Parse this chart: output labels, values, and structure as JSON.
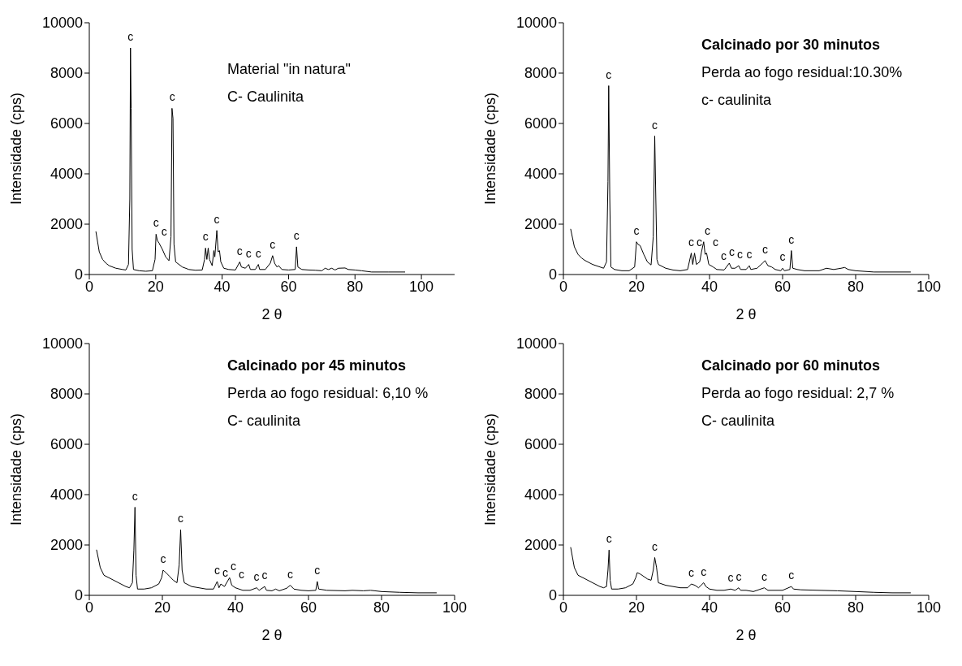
{
  "chart_data": [
    {
      "type": "line",
      "xlabel": "2 θ",
      "ylabel": "Intensidade (cps)",
      "xlim": [
        0,
        110
      ],
      "xticks": [
        0,
        20,
        40,
        60,
        80,
        100
      ],
      "ylim": [
        0,
        10000
      ],
      "yticks": [
        0,
        2000,
        4000,
        6000,
        8000,
        10000
      ],
      "x": [
        2,
        3,
        4,
        5,
        6,
        8,
        10,
        11,
        11.8,
        12.2,
        12.4,
        12.6,
        12.9,
        13.3,
        15,
        17,
        19,
        19.8,
        20.1,
        20.5,
        21,
        22,
        23,
        24,
        24.6,
        24.9,
        25.2,
        25.5,
        26,
        28,
        30,
        32,
        34,
        34.7,
        35,
        35.4,
        35.8,
        36.2,
        37,
        37.5,
        37.8,
        38.4,
        38.8,
        39.2,
        39.6,
        40.5,
        42,
        44,
        45.3,
        45.8,
        47,
        48,
        48.5,
        50,
        50.9,
        51.3,
        53,
        54.5,
        55.2,
        55.8,
        56.5,
        57,
        58,
        60,
        62,
        62.4,
        62.8,
        64,
        66,
        68,
        70,
        71,
        72,
        73,
        74,
        75,
        77,
        78,
        80,
        82,
        85,
        90,
        95
      ],
      "series": [
        {
          "color": "#000000",
          "values": [
            1700,
            900,
            600,
            450,
            350,
            250,
            200,
            180,
            400,
            3000,
            9000,
            6600,
            1000,
            200,
            150,
            130,
            150,
            600,
            1600,
            1350,
            1250,
            1000,
            700,
            550,
            1500,
            6600,
            6200,
            1200,
            500,
            300,
            200,
            170,
            180,
            600,
            1050,
            600,
            1050,
            600,
            350,
            950,
            700,
            1750,
            900,
            950,
            500,
            250,
            200,
            180,
            500,
            300,
            250,
            400,
            200,
            200,
            400,
            200,
            200,
            450,
            750,
            450,
            300,
            350,
            200,
            180,
            200,
            1100,
            300,
            200,
            180,
            170,
            150,
            250,
            200,
            250,
            180,
            250,
            260,
            200,
            180,
            150,
            100,
            100,
            100
          ]
        }
      ],
      "annotations": [
        "Material \"in natura\"",
        "C- Caulinita",
        {
          "text": "c",
          "x": 12.4,
          "y": 9000
        },
        {
          "text": "c",
          "x": 20.1,
          "y": 1600
        },
        {
          "text": "c",
          "x": 21,
          "y": 1250
        },
        {
          "text": "c",
          "x": 24.9,
          "y": 6600
        },
        {
          "text": "c",
          "x": 35,
          "y": 1050
        },
        {
          "text": "c",
          "x": 38.4,
          "y": 1750
        },
        {
          "text": "c",
          "x": 45.3,
          "y": 500
        },
        {
          "text": "c",
          "x": 48,
          "y": 400
        },
        {
          "text": "c",
          "x": 50.9,
          "y": 400
        },
        {
          "text": "c",
          "x": 55.2,
          "y": 750
        },
        {
          "text": "c",
          "x": 62.4,
          "y": 1100
        }
      ]
    },
    {
      "type": "line",
      "title": "Calcinado por 30 minutos",
      "xlabel": "2 θ",
      "ylabel": "Intensidade (cps)",
      "xlim": [
        0,
        100
      ],
      "xticks": [
        0,
        20,
        40,
        60,
        80,
        100
      ],
      "ylim": [
        0,
        10000
      ],
      "yticks": [
        0,
        2000,
        4000,
        6000,
        8000,
        10000
      ],
      "x": [
        2,
        3,
        4,
        5,
        6,
        8,
        10,
        11,
        11.8,
        12.2,
        12.4,
        12.7,
        13,
        14,
        16,
        18,
        19.5,
        20,
        20.4,
        21,
        22,
        23,
        24,
        24.6,
        25,
        25.3,
        25.6,
        26,
        28,
        30,
        32,
        34,
        35,
        35.4,
        35.9,
        36.4,
        37.3,
        37.8,
        38.4,
        38.8,
        39.2,
        39.8,
        41,
        42,
        44,
        45.4,
        46,
        47,
        48,
        48.5,
        50,
        50.9,
        51.3,
        53,
        54.5,
        55.2,
        56,
        57,
        58,
        59.5,
        60,
        60.5,
        62,
        62.4,
        62.8,
        64,
        66,
        70,
        72,
        74,
        76,
        77,
        78,
        80,
        85,
        90,
        95
      ],
      "series": [
        {
          "color": "#000000",
          "values": [
            1800,
            1100,
            800,
            650,
            550,
            400,
            300,
            250,
            500,
            3700,
            7500,
            3000,
            300,
            200,
            150,
            150,
            300,
            1300,
            1200,
            1150,
            800,
            500,
            380,
            1500,
            5500,
            3000,
            600,
            400,
            250,
            180,
            150,
            200,
            850,
            400,
            850,
            400,
            500,
            900,
            1300,
            800,
            850,
            400,
            300,
            200,
            180,
            450,
            250,
            250,
            350,
            200,
            200,
            350,
            200,
            250,
            450,
            550,
            350,
            300,
            200,
            150,
            250,
            150,
            200,
            950,
            250,
            200,
            150,
            150,
            250,
            200,
            250,
            280,
            200,
            150,
            100,
            100,
            100
          ]
        }
      ],
      "annotations": [
        "Perda ao fogo residual:10.30%",
        "c- caulinita",
        {
          "text": "c",
          "x": 12.4,
          "y": 7500
        },
        {
          "text": "c",
          "x": 20,
          "y": 1300
        },
        {
          "text": "c",
          "x": 25,
          "y": 5500
        },
        {
          "text": "c",
          "x": 35,
          "y": 850
        },
        {
          "text": "c",
          "x": 35.9,
          "y": 850
        },
        {
          "text": "c",
          "x": 38.4,
          "y": 1300
        },
        {
          "text": "c",
          "x": 39.2,
          "y": 850
        },
        {
          "text": "c",
          "x": 41,
          "y": 300
        },
        {
          "text": "c",
          "x": 45.4,
          "y": 450
        },
        {
          "text": "c",
          "x": 48,
          "y": 350
        },
        {
          "text": "c",
          "x": 50.9,
          "y": 350
        },
        {
          "text": "c",
          "x": 55.2,
          "y": 550
        },
        {
          "text": "c",
          "x": 60,
          "y": 250
        },
        {
          "text": "c",
          "x": 62.4,
          "y": 950
        }
      ]
    },
    {
      "type": "line",
      "title": "Calcinado por 45 minutos",
      "xlabel": "2 θ",
      "ylabel": "Intensidade (cps)",
      "xlim": [
        0,
        100
      ],
      "xticks": [
        0,
        20,
        40,
        60,
        80,
        100
      ],
      "ylim": [
        0,
        10000
      ],
      "yticks": [
        0,
        2000,
        4000,
        6000,
        8000,
        10000
      ],
      "x": [
        2,
        3,
        4,
        6,
        8,
        10,
        11,
        11.8,
        12.2,
        12.5,
        12.8,
        13.2,
        15,
        17,
        19,
        19.8,
        20.2,
        20.6,
        21,
        22,
        23,
        24,
        24.6,
        25,
        25.4,
        26,
        28,
        30,
        32,
        34,
        35,
        35.5,
        36,
        37,
        37.8,
        38.4,
        39,
        40,
        42,
        44,
        45.8,
        46.5,
        48,
        48.5,
        50,
        51,
        52,
        54,
        55,
        56,
        58,
        60,
        62,
        62.4,
        62.8,
        65,
        70,
        72,
        75,
        77,
        80,
        85,
        90,
        95
      ],
      "series": [
        {
          "color": "#000000",
          "values": [
            1800,
            1100,
            800,
            650,
            500,
            350,
            300,
            500,
            1800,
            3500,
            800,
            250,
            250,
            300,
            450,
            700,
            1000,
            950,
            900,
            750,
            600,
            500,
            1200,
            2600,
            1000,
            500,
            350,
            300,
            250,
            250,
            550,
            300,
            450,
            350,
            550,
            700,
            400,
            300,
            200,
            200,
            300,
            200,
            350,
            200,
            180,
            250,
            180,
            280,
            400,
            250,
            200,
            180,
            200,
            550,
            250,
            200,
            180,
            200,
            180,
            200,
            150,
            120,
            100,
            100
          ]
        }
      ],
      "annotations": [
        "Perda ao fogo residual: 6,10 %",
        "C- caulinita",
        {
          "text": "c",
          "x": 12.5,
          "y": 3500
        },
        {
          "text": "c",
          "x": 20.2,
          "y": 1000
        },
        {
          "text": "c",
          "x": 25,
          "y": 2600
        },
        {
          "text": "c",
          "x": 35,
          "y": 550
        },
        {
          "text": "c",
          "x": 36,
          "y": 450
        },
        {
          "text": "c",
          "x": 38.4,
          "y": 700
        },
        {
          "text": "c",
          "x": 39,
          "y": 400
        },
        {
          "text": "c",
          "x": 45.8,
          "y": 300
        },
        {
          "text": "c",
          "x": 48,
          "y": 350
        },
        {
          "text": "c",
          "x": 55,
          "y": 400
        },
        {
          "text": "c",
          "x": 62.4,
          "y": 550
        }
      ]
    },
    {
      "type": "line",
      "title": "Calcinado por 60 minutos",
      "xlabel": "2 θ",
      "ylabel": "Intensidade (cps)",
      "xlim": [
        0,
        100
      ],
      "xticks": [
        0,
        20,
        40,
        60,
        80,
        100
      ],
      "ylim": [
        0,
        10000
      ],
      "yticks": [
        0,
        2000,
        4000,
        6000,
        8000,
        10000
      ],
      "x": [
        2,
        3,
        4,
        6,
        8,
        10,
        11,
        11.8,
        12.2,
        12.5,
        12.8,
        13.2,
        15,
        17,
        19,
        19.8,
        20.2,
        21,
        22,
        23,
        24,
        24.6,
        25,
        25.5,
        26,
        28,
        30,
        32,
        34,
        35,
        36,
        37,
        38.4,
        39,
        40,
        42,
        44,
        45.8,
        47,
        48,
        48.5,
        50,
        52,
        54,
        55,
        56,
        58,
        60,
        62.4,
        63,
        65,
        70,
        75,
        80,
        85,
        90,
        95
      ],
      "series": [
        {
          "color": "#000000",
          "values": [
            1900,
            1100,
            800,
            650,
            500,
            350,
            300,
            350,
            1000,
            1800,
            600,
            250,
            250,
            300,
            450,
            700,
            900,
            850,
            750,
            650,
            600,
            1000,
            1500,
            1100,
            500,
            400,
            350,
            300,
            300,
            450,
            400,
            300,
            500,
            350,
            250,
            200,
            200,
            250,
            200,
            300,
            200,
            200,
            150,
            250,
            300,
            200,
            200,
            200,
            350,
            250,
            220,
            200,
            180,
            150,
            120,
            100,
            100
          ]
        }
      ],
      "annotations": [
        "Perda ao fogo residual: 2,7 %",
        "C- caulinita",
        {
          "text": "c",
          "x": 12.5,
          "y": 1800
        },
        {
          "text": "c",
          "x": 25,
          "y": 1500
        },
        {
          "text": "c",
          "x": 35,
          "y": 450
        },
        {
          "text": "c",
          "x": 38.4,
          "y": 500
        },
        {
          "text": "c",
          "x": 45.8,
          "y": 250
        },
        {
          "text": "c",
          "x": 48,
          "y": 300
        },
        {
          "text": "c",
          "x": 55,
          "y": 300
        },
        {
          "text": "c",
          "x": 62.4,
          "y": 350
        }
      ]
    }
  ]
}
